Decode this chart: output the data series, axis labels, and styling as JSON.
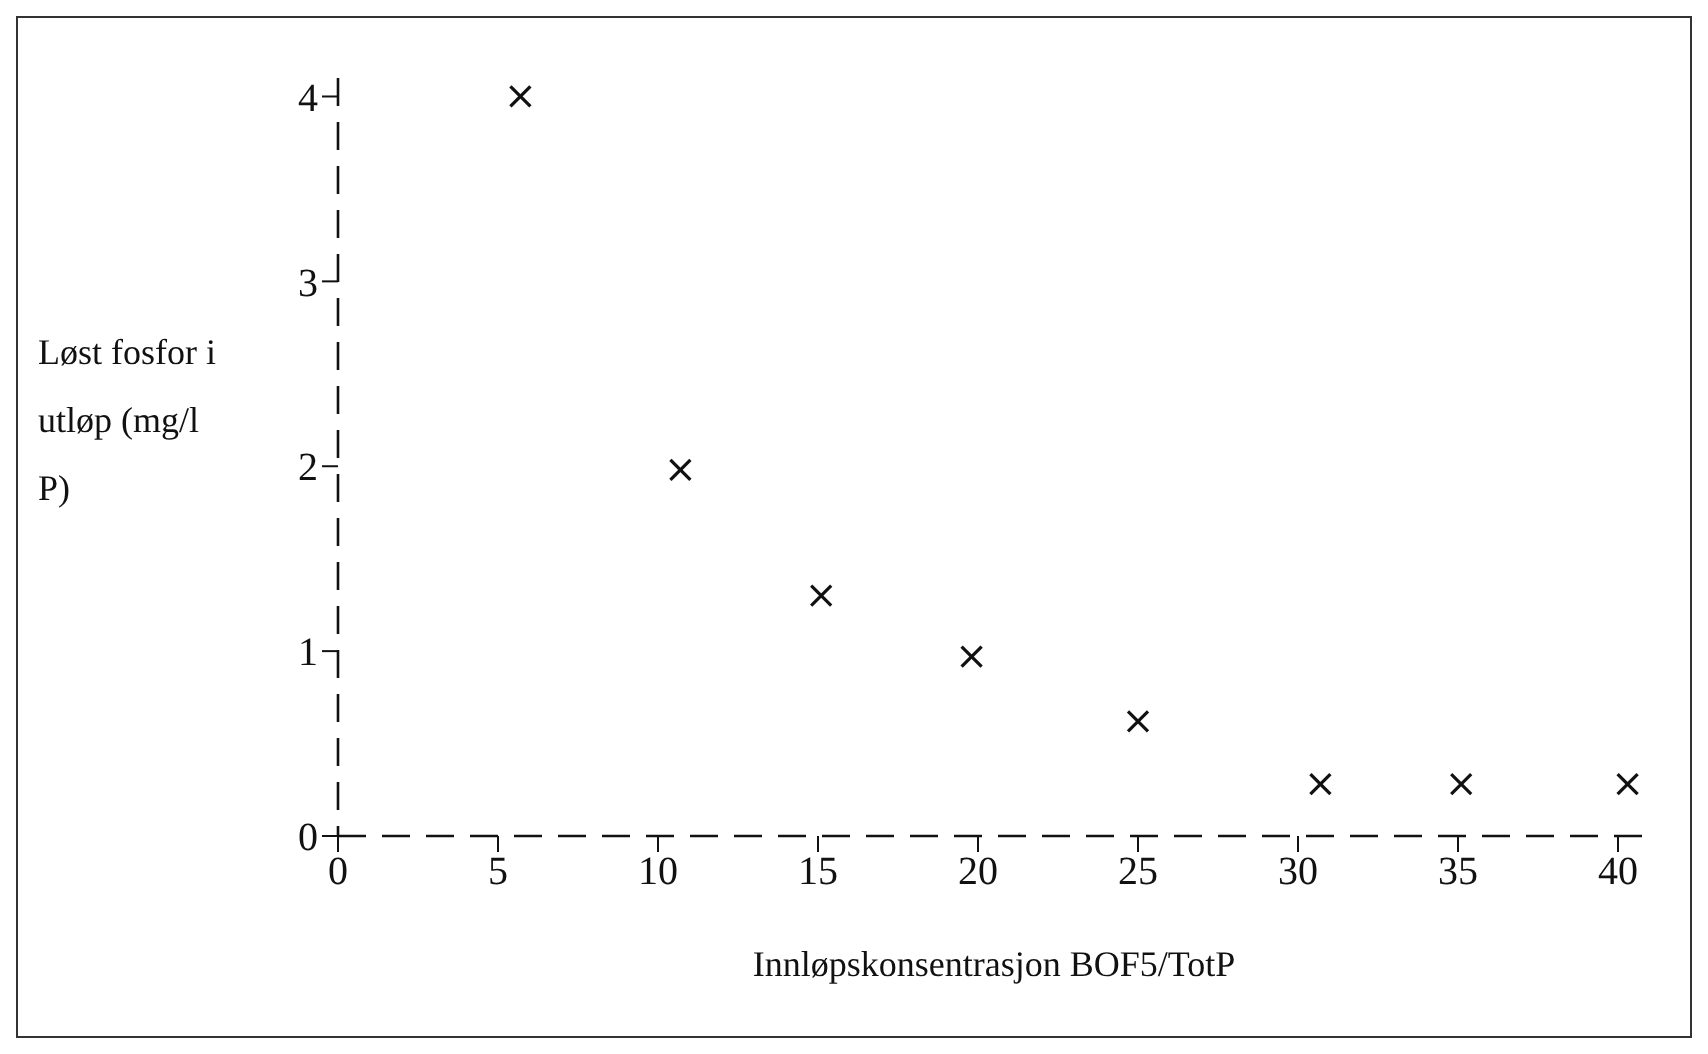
{
  "chart_data": {
    "type": "scatter",
    "xlabel": "Innløpskonsentrasjon BOF5/TotP",
    "ylabel": "Løst fosfor i utløp (mg/l P)",
    "x": [
      5.7,
      10.7,
      15.1,
      19.8,
      25,
      30.7,
      35.1,
      40.3
    ],
    "values": [
      4.0,
      1.98,
      1.3,
      0.97,
      0.62,
      0.28,
      0.28,
      0.28
    ],
    "color": "#111111",
    "marker": "cross",
    "grid": false,
    "legend": false,
    "line_style": "dashed",
    "xlim": [
      0,
      41
    ],
    "xticks": [
      0,
      5,
      10,
      15,
      20,
      25,
      30,
      35,
      40
    ],
    "ylim": [
      0,
      4.1
    ],
    "yticks": [
      0,
      1,
      2,
      3,
      4
    ]
  }
}
